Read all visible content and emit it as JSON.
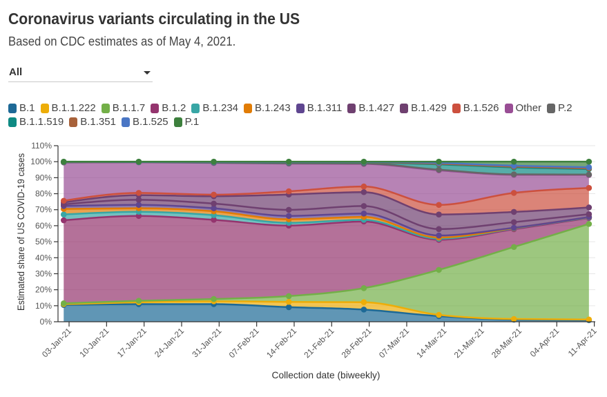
{
  "header": {
    "title": "Coronavirus variants circulating in the US",
    "subtitle": "Based on CDC estimates as of May 4, 2021."
  },
  "filter": {
    "selected": "All",
    "icon": "caret-down-icon"
  },
  "chart_data": {
    "type": "area",
    "stacked": true,
    "title": "Coronavirus variants circulating in the US",
    "subtitle": "Based on CDC estimates as of May 4, 2021.",
    "xlabel": "Collection date (biweekly)",
    "ylabel": "Estimated share of US COVID-19 cases",
    "x": [
      "2021-01-02",
      "2021-01-16",
      "2021-01-30",
      "2021-02-13",
      "2021-02-27",
      "2021-03-13",
      "2021-03-27",
      "2021-04-10"
    ],
    "xlim": [
      "2021-01-01",
      "2021-04-11"
    ],
    "ylim": [
      0,
      110
    ],
    "yticks": [
      0,
      10,
      20,
      30,
      40,
      50,
      60,
      70,
      80,
      90,
      100,
      110
    ],
    "ytick_labels": [
      "0%",
      "10%",
      "20%",
      "30%",
      "40%",
      "50%",
      "60%",
      "70%",
      "80%",
      "90%",
      "100%",
      "110%"
    ],
    "xticks": [
      "2021-01-03",
      "2021-01-10",
      "2021-01-17",
      "2021-01-24",
      "2021-01-31",
      "2021-02-07",
      "2021-02-14",
      "2021-02-21",
      "2021-02-28",
      "2021-03-07",
      "2021-03-14",
      "2021-03-21",
      "2021-03-28",
      "2021-04-04",
      "2021-04-11"
    ],
    "xtick_labels": [
      "03-Jan-21",
      "10-Jan-21",
      "17-Jan-21",
      "24-Jan-21",
      "31-Jan-21",
      "07-Feb-21",
      "14-Feb-21",
      "21-Feb-21",
      "28-Feb-21",
      "07-Mar-21",
      "14-Mar-21",
      "21-Mar-21",
      "28-Mar-21",
      "04-Apr-21",
      "11-Apr-21"
    ],
    "grid": true,
    "legend_position": "top",
    "units": "percent of cases",
    "series": [
      {
        "name": "B.1",
        "color": "#1D6996",
        "values": [
          10.5,
          11.0,
          11.0,
          9.1,
          7.6,
          3.5,
          1.3,
          1.0
        ]
      },
      {
        "name": "B.1.1.222",
        "color": "#EDAD08",
        "values": [
          0.5,
          1.2,
          1.8,
          3.3,
          4.6,
          0.8,
          0.4,
          0.4
        ]
      },
      {
        "name": "B.1.1.7",
        "color": "#73AF48",
        "values": [
          0.5,
          0.9,
          1.4,
          3.6,
          8.8,
          28.1,
          45.0,
          59.7
        ]
      },
      {
        "name": "B.1.2",
        "color": "#94346E",
        "values": [
          51.9,
          53.0,
          49.5,
          44.1,
          41.6,
          18.8,
          11.1,
          3.7
        ]
      },
      {
        "name": "B.1.234",
        "color": "#38A6A5",
        "values": [
          3.6,
          2.6,
          2.9,
          1.7,
          1.1,
          0.7,
          0.5,
          0.3
        ]
      },
      {
        "name": "B.1.243",
        "color": "#E17C05",
        "values": [
          3.5,
          2.2,
          2.4,
          2.2,
          1.8,
          0.7,
          0.2,
          0.2
        ]
      },
      {
        "name": "B.1.311",
        "color": "#5F4690",
        "values": [
          1.8,
          2.1,
          1.9,
          2.1,
          2.1,
          1.3,
          0.2,
          0.1
        ]
      },
      {
        "name": "B.1.427",
        "color": "#6F4070",
        "values": [
          1.0,
          3.2,
          2.9,
          3.8,
          4.7,
          4.0,
          3.5,
          1.8
        ]
      },
      {
        "name": "B.1.429",
        "color": "#6F4070",
        "values": [
          1.2,
          2.9,
          4.6,
          9.6,
          8.7,
          9.1,
          6.4,
          4.2
        ]
      },
      {
        "name": "B.1.526",
        "color": "#CC503E",
        "values": [
          1.1,
          1.4,
          1.0,
          2.0,
          3.5,
          6.0,
          11.9,
          12.2
        ]
      },
      {
        "name": "Other",
        "color": "#994E95",
        "values": [
          23.9,
          19.1,
          19.8,
          17.3,
          14.1,
          21.6,
          11.3,
          8.1
        ]
      },
      {
        "name": "P.2",
        "color": "#666666",
        "values": [
          0.1,
          0.1,
          0.2,
          0.2,
          0.3,
          0.4,
          0.3,
          0.3
        ]
      },
      {
        "name": "B.1.1.519",
        "color": "#0E8A83",
        "values": [
          0.1,
          0.1,
          0.2,
          0.4,
          0.5,
          3.3,
          4.3,
          3.4
        ]
      },
      {
        "name": "B.1.351",
        "color": "#A8623A",
        "values": [
          0.1,
          0.1,
          0.1,
          0.2,
          0.2,
          0.4,
          0.5,
          0.4
        ]
      },
      {
        "name": "B.1.525",
        "color": "#4A76C4",
        "values": [
          0.1,
          0.0,
          0.1,
          0.2,
          0.2,
          0.5,
          0.6,
          0.7
        ]
      },
      {
        "name": "P.1",
        "color": "#3D803D",
        "values": [
          0.1,
          0.1,
          0.2,
          0.2,
          0.2,
          0.8,
          2.5,
          3.5
        ]
      }
    ]
  }
}
